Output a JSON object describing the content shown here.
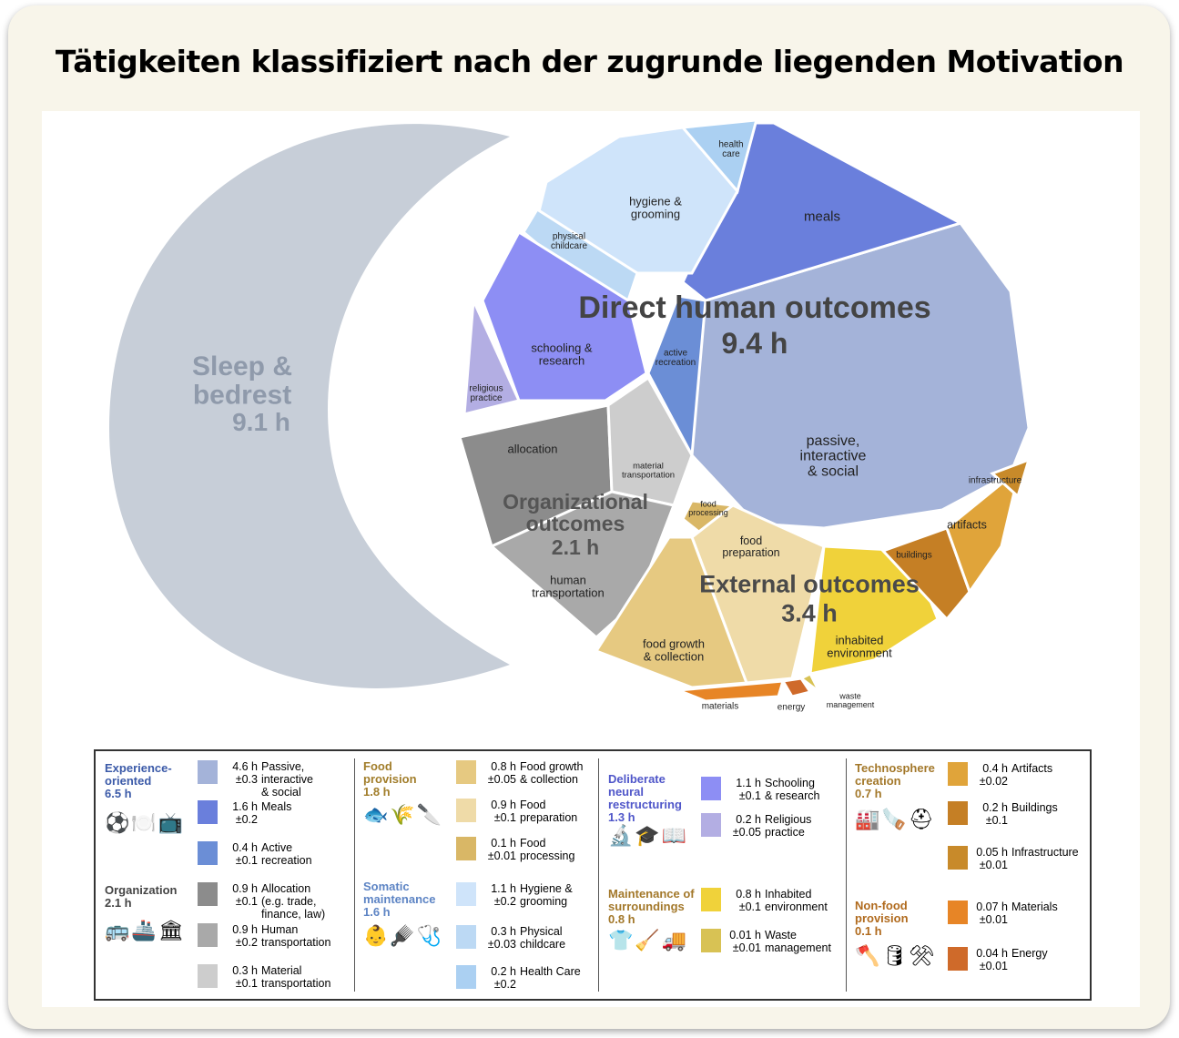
{
  "title": "Tätigkeiten klassifiziert nach der zugrunde liegenden Motivation",
  "chart_data": {
    "type": "pie",
    "unit": "h",
    "groups": [
      {
        "label": "Sleep &\nbedrest",
        "value": "9.1 h",
        "hours": 9.1,
        "color": "#c7ced8"
      },
      {
        "label": "Direct human outcomes",
        "value": "9.4 h",
        "hours": 9.4
      },
      {
        "label": "Organizational\noutcomes",
        "value": "2.1 h",
        "hours": 2.1
      },
      {
        "label": "External outcomes",
        "value": "3.4 h",
        "hours": 3.4
      }
    ],
    "slices": [
      {
        "group": "Direct human outcomes",
        "label": "passive,\ninteractive\n& social",
        "hours": 4.6,
        "color": "#a4b3d9"
      },
      {
        "group": "Direct human outcomes",
        "label": "meals",
        "hours": 1.6,
        "color": "#6a7fdc"
      },
      {
        "group": "Direct human outcomes",
        "label": "active\nrecreation",
        "hours": 0.4,
        "color": "#6b8ed6"
      },
      {
        "group": "Direct human outcomes",
        "label": "hygiene &\ngrooming",
        "hours": 1.1,
        "color": "#cfe4fa"
      },
      {
        "group": "Direct human outcomes",
        "label": "health\ncare",
        "hours": 0.2,
        "color": "#abd0f2"
      },
      {
        "group": "Direct human outcomes",
        "label": "physical\nchildcare",
        "hours": 0.3,
        "color": "#bcd9f4"
      },
      {
        "group": "Direct human outcomes",
        "label": "schooling &\nresearch",
        "hours": 1.1,
        "color": "#8d8ef4"
      },
      {
        "group": "Direct human outcomes",
        "label": "religious\npractice",
        "hours": 0.2,
        "color": "#b3aee3"
      },
      {
        "group": "Organizational outcomes",
        "label": "allocation",
        "hours": 0.9,
        "color": "#8c8c8c"
      },
      {
        "group": "Organizational outcomes",
        "label": "material\ntransportation",
        "hours": 0.3,
        "color": "#cdcdcd"
      },
      {
        "group": "Organizational outcomes",
        "label": "human\ntransportation",
        "hours": 0.9,
        "color": "#a9a9a9"
      },
      {
        "group": "External outcomes",
        "label": "food\nprocessing",
        "hours": 0.1,
        "color": "#d9b766"
      },
      {
        "group": "External outcomes",
        "label": "food\npreparation",
        "hours": 0.9,
        "color": "#efdba8"
      },
      {
        "group": "External outcomes",
        "label": "food growth\n& collection",
        "hours": 0.8,
        "color": "#e6c981"
      },
      {
        "group": "External outcomes",
        "label": "inhabited\nenvironment",
        "hours": 0.8,
        "color": "#f0d23a"
      },
      {
        "group": "External outcomes",
        "label": "waste\nmanagement",
        "hours": 0.01,
        "color": "#d8c254"
      },
      {
        "group": "External outcomes",
        "label": "materials",
        "hours": 0.07,
        "color": "#e78526"
      },
      {
        "group": "External outcomes",
        "label": "energy",
        "hours": 0.04,
        "color": "#cf6a2a"
      },
      {
        "group": "External outcomes",
        "label": "buildings",
        "hours": 0.2,
        "color": "#c57f25"
      },
      {
        "group": "External outcomes",
        "label": "artifacts",
        "hours": 0.4,
        "color": "#e0a43a"
      },
      {
        "group": "External outcomes",
        "label": "infrastructure",
        "hours": 0.05,
        "color": "#c88a2a"
      }
    ]
  },
  "legend": {
    "experience": {
      "title": "Experience-\noriented",
      "hours": "6.5 h",
      "icons": "⚽🍽️📺",
      "items": [
        {
          "value": "4.6 h\n±0.3",
          "label": "Passive,\ninteractive\n& social",
          "color": "#a4b3d9"
        },
        {
          "value": "1.6 h\n±0.2",
          "label": "Meals",
          "color": "#6a7fdc"
        },
        {
          "value": "0.4 h\n±0.1",
          "label": "Active\nrecreation",
          "color": "#6b8ed6"
        }
      ]
    },
    "organization": {
      "title": "Organization",
      "hours": "2.1 h",
      "icons": "🚌🚢🏛",
      "items": [
        {
          "value": "0.9 h\n±0.1",
          "label": "Allocation\n(e.g. trade,\nfinance, law)",
          "color": "#8c8c8c"
        },
        {
          "value": "0.9 h\n±0.2",
          "label": "Human\ntransportation",
          "color": "#a9a9a9"
        },
        {
          "value": "0.3 h\n±0.1",
          "label": "Material\ntransportation",
          "color": "#cdcdcd"
        }
      ]
    },
    "food": {
      "title": "Food\nprovision",
      "hours": "1.8 h",
      "icons": "🐟🌾🔪",
      "items": [
        {
          "value": "0.8 h\n±0.05",
          "label": "Food growth\n& collection",
          "color": "#e6c981"
        },
        {
          "value": "0.9 h\n±0.1",
          "label": "Food\npreparation",
          "color": "#efdba8"
        },
        {
          "value": "0.1 h\n±0.01",
          "label": "Food\nprocessing",
          "color": "#d9b766"
        }
      ]
    },
    "somatic": {
      "title": "Somatic\nmaintenance",
      "hours": "1.6 h",
      "icons": "👶🪮🩺",
      "items": [
        {
          "value": "1.1 h\n±0.2",
          "label": "Hygiene &\ngrooming",
          "color": "#cfe4fa"
        },
        {
          "value": "0.3 h\n±0.03",
          "label": "Physical\nchildcare",
          "color": "#bcd9f4"
        },
        {
          "value": "0.2 h\n±0.2",
          "label": "Health Care",
          "color": "#abd0f2"
        }
      ]
    },
    "neural": {
      "title": "Deliberate\nneural\nrestructuring",
      "hours": "1.3 h",
      "icons": "🔬🎓📖",
      "items": [
        {
          "value": "1.1 h\n±0.1",
          "label": "Schooling\n& research",
          "color": "#8d8ef4"
        },
        {
          "value": "0.2 h\n±0.05",
          "label": "Religious\npractice",
          "color": "#b3aee3"
        }
      ]
    },
    "surroundings": {
      "title": "Maintenance of\nsurroundings",
      "hours": "0.8 h",
      "icons": "👕🧹🚚",
      "items": [
        {
          "value": "0.8 h\n±0.1",
          "label": "Inhabited\nenvironment",
          "color": "#f0d23a"
        },
        {
          "value": "0.01 h\n±0.01",
          "label": "Waste\nmanagement",
          "color": "#d8c254"
        }
      ]
    },
    "technosphere": {
      "title": "Technosphere\ncreation",
      "hours": "0.7 h",
      "icons": "🏭🪚⛑",
      "items": [
        {
          "value": "0.4 h\n±0.02",
          "label": "Artifacts",
          "color": "#e0a43a"
        },
        {
          "value": "0.2 h\n±0.1",
          "label": "Buildings",
          "color": "#c57f25"
        },
        {
          "value": "0.05 h\n±0.01",
          "label": "Infrastructure",
          "color": "#c88a2a"
        }
      ]
    },
    "nonfood": {
      "title": "Non-food\nprovision",
      "hours": "0.1 h",
      "icons": "🪓🛢⚒",
      "items": [
        {
          "value": "0.07 h\n±0.01",
          "label": "Materials",
          "color": "#e78526"
        },
        {
          "value": "0.04 h\n±0.01",
          "label": "Energy",
          "color": "#cf6a2a"
        }
      ]
    }
  }
}
